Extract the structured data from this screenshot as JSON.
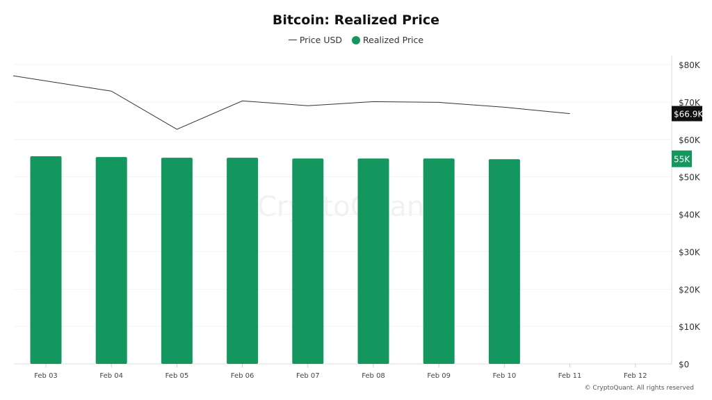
{
  "chart_data": {
    "type": "bar",
    "title": "Bitcoin: Realized Price",
    "legend": [
      "Price USD",
      "Realized Price"
    ],
    "legend_placement": "top-center",
    "categories": [
      "Feb 03",
      "Feb 04",
      "Feb 05",
      "Feb 06",
      "Feb 07",
      "Feb 08",
      "Feb 09",
      "Feb 10",
      "Feb 11",
      "Feb 12"
    ],
    "series": [
      {
        "name": "Realized Price",
        "type": "bar",
        "color": "#14975f",
        "values": [
          55.5,
          55.3,
          55.1,
          55.1,
          54.9,
          54.9,
          54.9,
          54.7,
          null,
          null
        ]
      },
      {
        "name": "Price USD",
        "type": "line",
        "color": "#333333",
        "x": [
          -0.5,
          1,
          2,
          3,
          4,
          5,
          6,
          7,
          8
        ],
        "values": [
          77.0,
          72.9,
          62.7,
          70.3,
          69.0,
          70.1,
          69.9,
          68.6,
          66.9
        ]
      }
    ],
    "ylim": [
      0,
      80
    ],
    "yticks": [
      "$0",
      "$10K",
      "$20K",
      "$30K",
      "$40K",
      "$50K",
      "$60K",
      "$70K",
      "$80K"
    ],
    "y_unit": "thousand USD",
    "last_labels": {
      "price": "$66.9K",
      "realized": "55K"
    },
    "grid": true
  },
  "watermark": "CryptoQuant",
  "copyright": "© CryptoQuant. All rights reserved"
}
